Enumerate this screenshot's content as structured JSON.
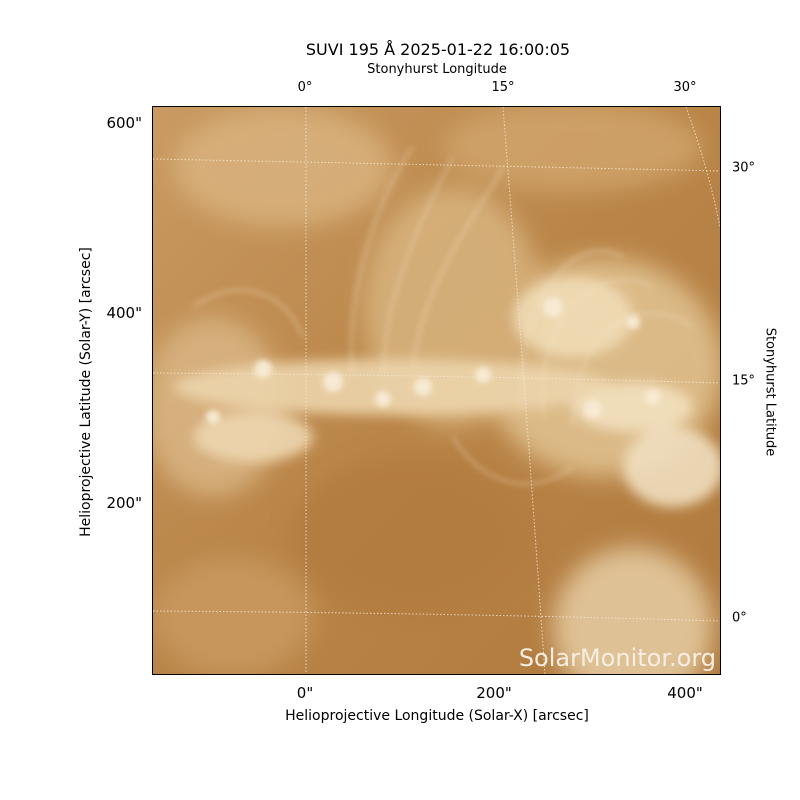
{
  "title": "SUVI 195 Å 2025-01-22 16:00:05",
  "top_axis_label": "Stonyhurst Longitude",
  "right_axis_label": "Stonyhurst Latitude",
  "x_axis_label": "Helioprojective Longitude (Solar-X) [arcsec]",
  "y_axis_label": "Helioprojective Latitude (Solar-Y) [arcsec]",
  "x_ticks": [
    "0\"",
    "200\"",
    "400\""
  ],
  "y_ticks": [
    "600\"",
    "400\"",
    "200\""
  ],
  "top_ticks": [
    "0°",
    "15°",
    "30°"
  ],
  "right_ticks": [
    "30°",
    "15°",
    "0°"
  ],
  "watermark": "SolarMonitor.org",
  "colors": {
    "base": "#b8844a",
    "bright": "#f4e6cc",
    "grid": "#f5ead8"
  }
}
